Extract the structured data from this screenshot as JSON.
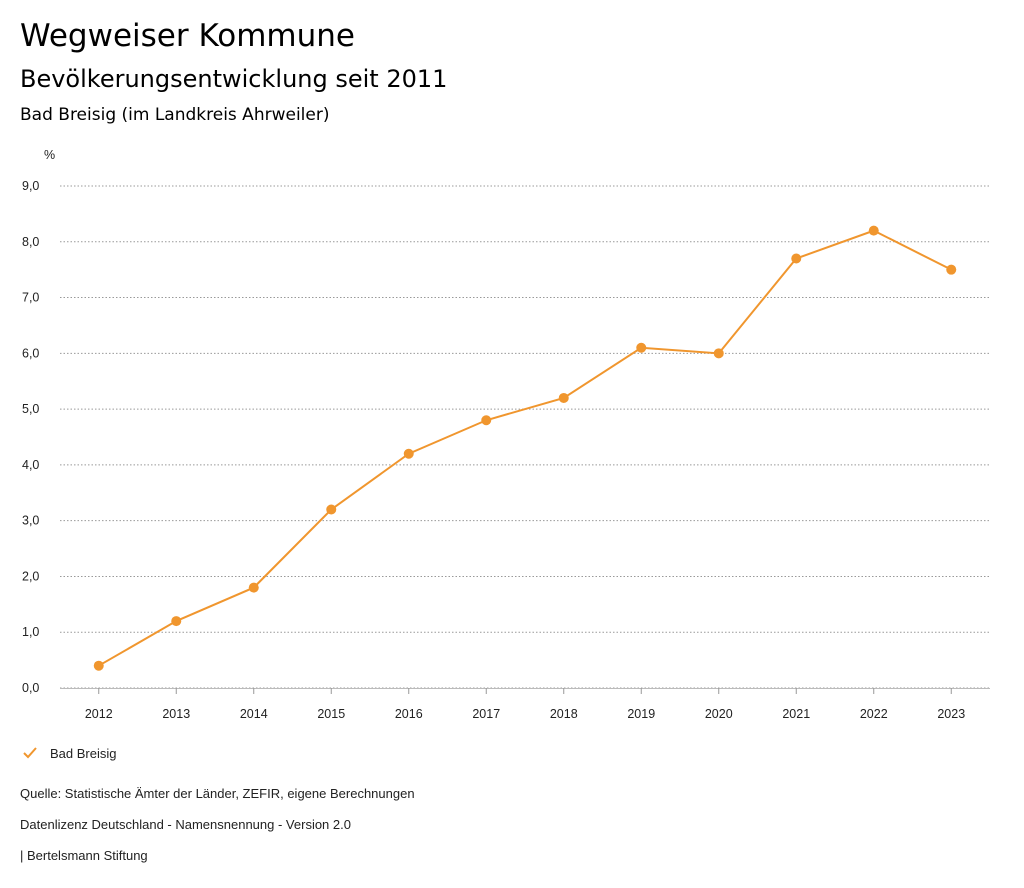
{
  "header": {
    "title": "Wegweiser Kommune",
    "subtitle": "Bevölkerungsentwicklung seit 2011",
    "region": "Bad Breisig (im Landkreis Ahrweiler)"
  },
  "chart_data": {
    "type": "line",
    "title": "Bevölkerungsentwicklung seit 2011",
    "ylabel": "%",
    "xlabel": "",
    "ylim": [
      0,
      9
    ],
    "yticks": [
      "0,0",
      "1,0",
      "2,0",
      "3,0",
      "4,0",
      "5,0",
      "6,0",
      "7,0",
      "8,0",
      "9,0"
    ],
    "categories": [
      "2012",
      "2013",
      "2014",
      "2015",
      "2016",
      "2017",
      "2018",
      "2019",
      "2020",
      "2021",
      "2022",
      "2023"
    ],
    "series": [
      {
        "name": "Bad Breisig",
        "color": "#f0962e",
        "values": [
          0.4,
          1.2,
          1.8,
          3.2,
          4.2,
          4.8,
          5.2,
          6.1,
          6.0,
          7.7,
          8.2,
          7.5
        ]
      }
    ],
    "grid": true,
    "legend": "bottom-left"
  },
  "legend": {
    "label": "Bad Breisig",
    "icon": "check-icon"
  },
  "footer": {
    "source": "Quelle: Statistische Ämter der Länder, ZEFIR, eigene Berechnungen",
    "license": "Datenlizenz Deutschland - Namensnennung - Version 2.0",
    "brand": "| Bertelsmann Stiftung"
  }
}
